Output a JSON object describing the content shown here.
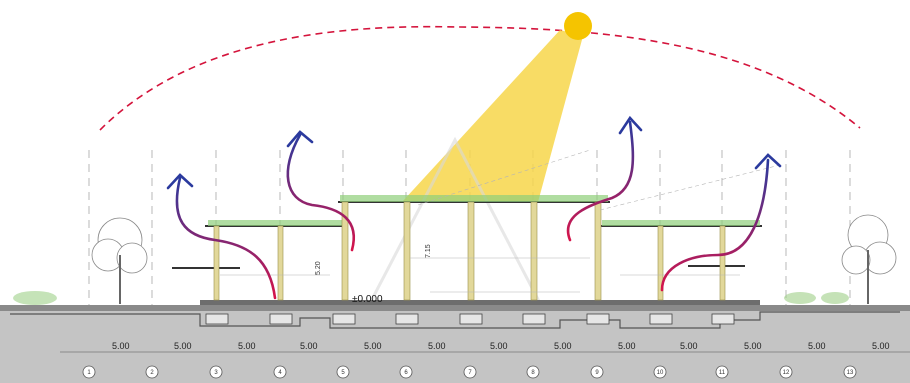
{
  "section": {
    "elevation_label": "±0.000",
    "height_labels": [
      "5.20",
      "7.15"
    ],
    "bay_dimensions": [
      "5.00",
      "5.00",
      "5.00",
      "5.00",
      "5.00",
      "5.00",
      "5.00",
      "5.00",
      "5.00",
      "5.00",
      "5.00",
      "5.00",
      "5.00"
    ],
    "grid_axes": [
      "1",
      "2",
      "3",
      "4",
      "5",
      "6",
      "7",
      "8",
      "9",
      "10",
      "11",
      "12",
      "13"
    ]
  },
  "colors": {
    "sun": "#f5c400",
    "sun_beam": "#f7d64a",
    "sun_path": "#d4143c",
    "airflow_start": "#d6144a",
    "airflow_end": "#2b3a9e",
    "column": "#d9cf8a",
    "ground": "#bdbdbd",
    "greenery": "#7fbf6a"
  },
  "icons": {
    "sun": "sun-icon",
    "tree_left": "tree-icon",
    "tree_right": "tree-icon"
  }
}
